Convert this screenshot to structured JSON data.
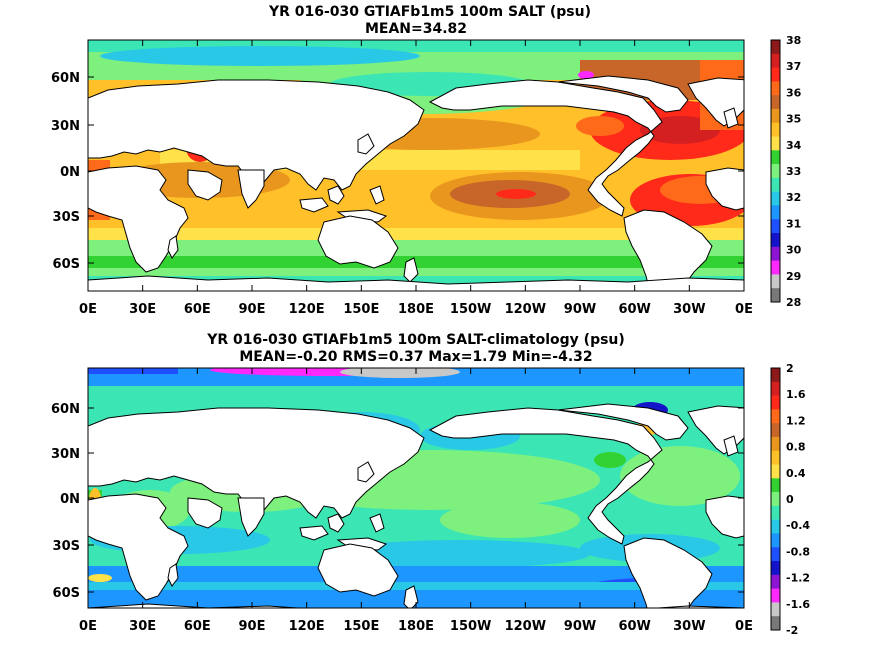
{
  "chart_data": [
    {
      "type": "heatmap",
      "title": "YR 016-030 GTIAFb1m5 100m SALT (psu)",
      "subtitle": "MEAN=34.82",
      "x_ticks": [
        "0E",
        "30E",
        "60E",
        "90E",
        "120E",
        "150E",
        "180E",
        "150W",
        "120W",
        "90W",
        "60W",
        "30W",
        "0E"
      ],
      "y_ticks": [
        "60N",
        "30N",
        "0N",
        "30S",
        "60S"
      ],
      "colorbar": {
        "labels": [
          "38",
          "37",
          "36",
          "35",
          "34",
          "33",
          "32",
          "31",
          "30",
          "29",
          "28"
        ],
        "colors": [
          "#8c1a1a",
          "#d42020",
          "#ff2a1a",
          "#ff6a1a",
          "#c8662a",
          "#e8961e",
          "#ffc02a",
          "#ffe24a",
          "#32d232",
          "#7ef07e",
          "#3ce6b4",
          "#28c8e6",
          "#1e96ff",
          "#1e50ff",
          "#1414c8",
          "#8c14d2",
          "#ff28ff",
          "#c8c8c8",
          "#787878"
        ]
      }
    },
    {
      "type": "heatmap",
      "title": "YR 016-030 GTIAFb1m5 100m SALT-climatology (psu)",
      "subtitle": "MEAN=-0.20   RMS=0.37   Max=1.79   Min=-4.32",
      "x_ticks": [
        "0E",
        "30E",
        "60E",
        "90E",
        "120E",
        "150E",
        "180E",
        "150W",
        "120W",
        "90W",
        "60W",
        "30W",
        "0E"
      ],
      "y_ticks": [
        "60N",
        "30N",
        "0N",
        "30S",
        "60S"
      ],
      "colorbar": {
        "labels": [
          "2",
          "1.6",
          "1.2",
          "0.8",
          "0.4",
          "0",
          "-0.4",
          "-0.8",
          "-1.2",
          "-1.6",
          "-2"
        ],
        "colors": [
          "#8c1a1a",
          "#d42020",
          "#ff2a1a",
          "#ff6a1a",
          "#c8662a",
          "#e8961e",
          "#ffc02a",
          "#ffe24a",
          "#32d232",
          "#7ef07e",
          "#3ce6b4",
          "#28c8e6",
          "#1e96ff",
          "#1e50ff",
          "#1414c8",
          "#8c14d2",
          "#ff28ff",
          "#c8c8c8",
          "#787878"
        ]
      }
    }
  ]
}
